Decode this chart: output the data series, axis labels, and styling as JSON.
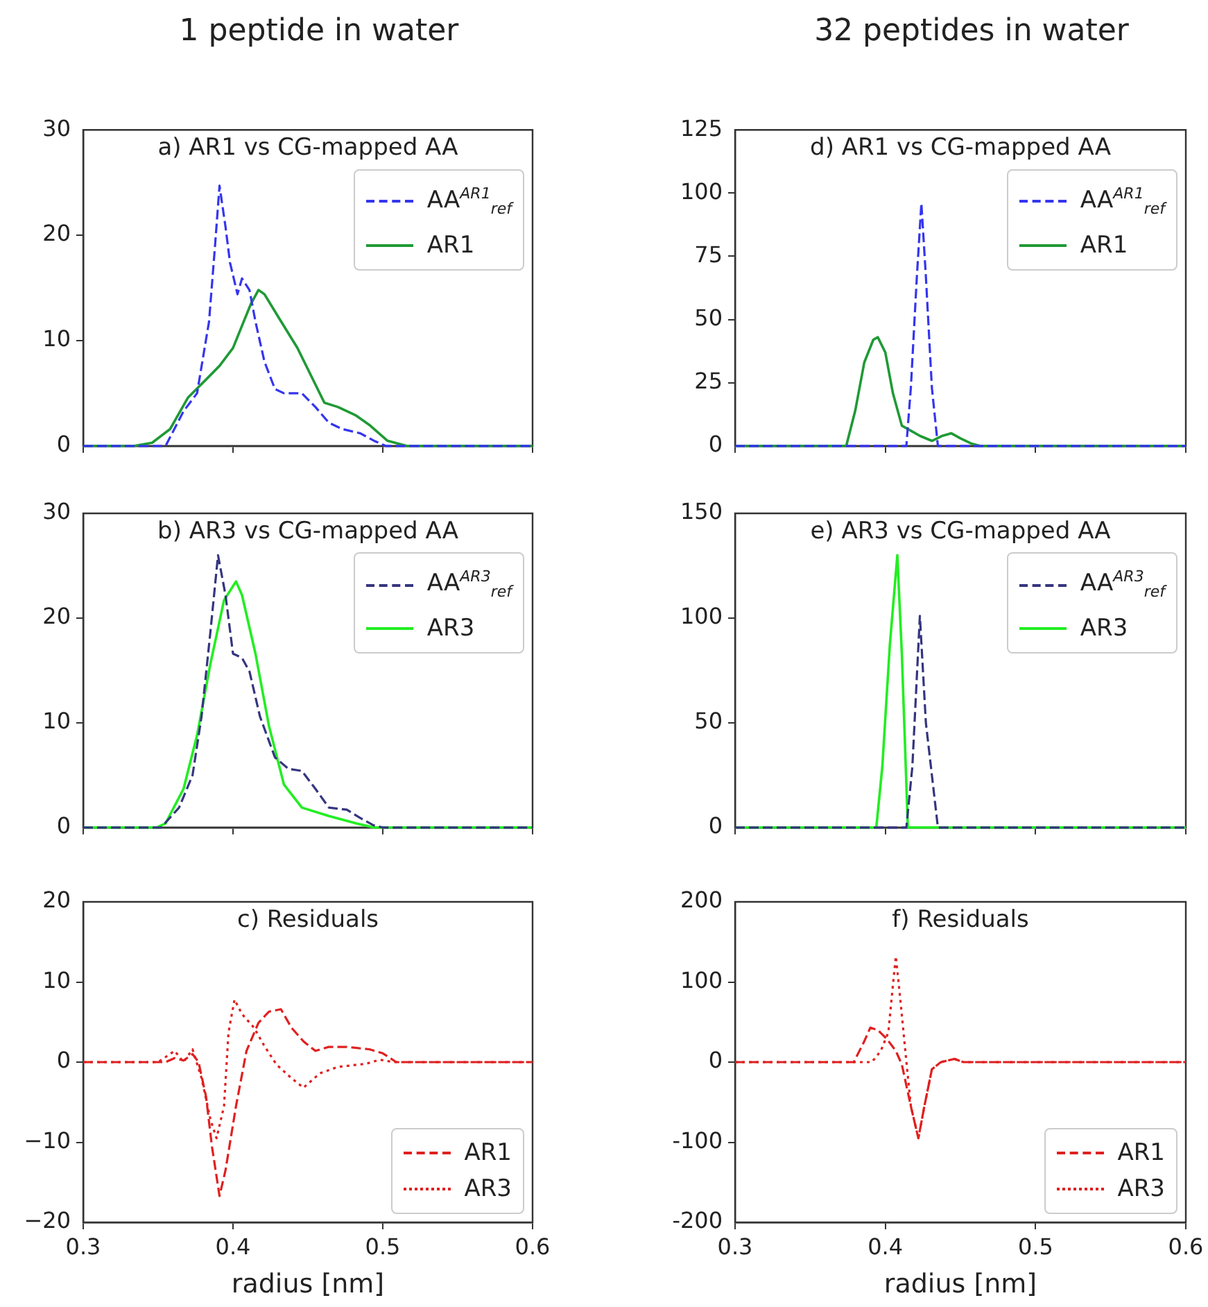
{
  "chart_data": [
    {
      "type": "line",
      "title": "a) AR1 vs CG-mapped AA",
      "annotations": [
        "1 peptide in water"
      ],
      "xlim": [
        0.3,
        0.6
      ],
      "xticks": [
        0.3,
        0.4,
        0.5,
        0.6
      ],
      "ylim": [
        0,
        30
      ],
      "yticks": [
        0,
        10,
        20,
        30
      ],
      "tick_labels": "y",
      "legend": "top right",
      "series": [
        {
          "name": "AA$^{AR1}$$_{ref}$",
          "color": "#3535f0",
          "line_style": "dashed",
          "x": [
            0.3,
            0.355,
            0.367,
            0.376,
            0.384,
            0.388,
            0.391,
            0.395,
            0.398,
            0.403,
            0.406,
            0.411,
            0.415,
            0.421,
            0.428,
            0.434,
            0.446,
            0.455,
            0.464,
            0.473,
            0.485,
            0.494,
            0.502,
            0.6
          ],
          "values": [
            0,
            0,
            3.3,
            5,
            11.8,
            19,
            24.7,
            20.8,
            17.4,
            14.4,
            15.9,
            14.8,
            11.8,
            8,
            5.4,
            5,
            5,
            3.7,
            2.2,
            1.6,
            1.2,
            0.5,
            0,
            0
          ]
        },
        {
          "name": "AR1",
          "color": "#1f9a35",
          "line_style": "solid",
          "x": [
            0.3,
            0.334,
            0.346,
            0.358,
            0.37,
            0.382,
            0.391,
            0.4,
            0.406,
            0.412,
            0.417,
            0.421,
            0.43,
            0.443,
            0.452,
            0.461,
            0.47,
            0.482,
            0.491,
            0.503,
            0.516,
            0.6
          ],
          "values": [
            0,
            0,
            0.3,
            1.6,
            4.6,
            6.3,
            7.6,
            9.3,
            11.4,
            13.5,
            14.8,
            14.4,
            12.3,
            9.3,
            6.7,
            4.1,
            3.7,
            2.9,
            2,
            0.5,
            0,
            0
          ]
        }
      ]
    },
    {
      "type": "line",
      "title": "b) AR3 vs CG-mapped AA",
      "xlim": [
        0.3,
        0.6
      ],
      "xticks": [
        0.3,
        0.4,
        0.5,
        0.6
      ],
      "ylim": [
        0,
        30
      ],
      "yticks": [
        0,
        10,
        20,
        30
      ],
      "tick_labels": "y",
      "legend": "top right",
      "series": [
        {
          "name": "AA$^{AR3}$$_{ref}$",
          "color": "#35357f",
          "line_style": "dashed",
          "x": [
            0.3,
            0.352,
            0.364,
            0.373,
            0.379,
            0.385,
            0.39,
            0.395,
            0.4,
            0.406,
            0.411,
            0.418,
            0.428,
            0.437,
            0.446,
            0.455,
            0.464,
            0.476,
            0.485,
            0.494,
            0.5,
            0.6
          ],
          "values": [
            0,
            0,
            1.9,
            5,
            10.6,
            18.8,
            26,
            22.2,
            16.6,
            16.2,
            14.9,
            10.6,
            6.7,
            5.6,
            5.4,
            3.7,
            1.9,
            1.7,
            0.9,
            0.2,
            0,
            0
          ]
        },
        {
          "name": "AR3",
          "color": "#22ee22",
          "line_style": "solid",
          "x": [
            0.3,
            0.349,
            0.355,
            0.367,
            0.376,
            0.385,
            0.394,
            0.402,
            0.406,
            0.415,
            0.424,
            0.434,
            0.446,
            0.464,
            0.482,
            0.494,
            0.6
          ],
          "values": [
            0,
            0,
            0.4,
            3.7,
            8.8,
            15.7,
            21.7,
            23.5,
            22.2,
            16.6,
            9.7,
            4.1,
            1.9,
            1.1,
            0.4,
            0,
            0
          ]
        }
      ]
    },
    {
      "type": "line",
      "title": "c) Residuals",
      "xlabel": "radius [nm]",
      "xlim": [
        0.3,
        0.6
      ],
      "xticks": [
        0.3,
        0.4,
        0.5,
        0.6
      ],
      "ylim": [
        -20,
        20
      ],
      "yticks": [
        {
          "value": -20,
          "label": "−20"
        },
        {
          "value": -10,
          "label": "−10"
        },
        0,
        10,
        20
      ],
      "legend": "bottom right",
      "series": [
        {
          "name": "AR1",
          "color": "#e02020",
          "line_style": "dashed",
          "x": [
            0.3,
            0.355,
            0.361,
            0.367,
            0.373,
            0.377,
            0.382,
            0.386,
            0.391,
            0.395,
            0.402,
            0.409,
            0.417,
            0.424,
            0.432,
            0.439,
            0.447,
            0.455,
            0.464,
            0.476,
            0.491,
            0.5,
            0.509,
            0.6
          ],
          "values": [
            0,
            0,
            0.5,
            0.2,
            1,
            0,
            -4.3,
            -10.6,
            -16.7,
            -13.5,
            -5.5,
            1.4,
            4.9,
            6.3,
            6.6,
            4.3,
            2.6,
            1.4,
            1.9,
            1.9,
            1.6,
            1.1,
            0,
            0
          ]
        },
        {
          "name": "AR3",
          "color": "#e02020",
          "line_style": "dotted",
          "x": [
            0.3,
            0.35,
            0.361,
            0.367,
            0.373,
            0.379,
            0.385,
            0.389,
            0.394,
            0.397,
            0.401,
            0.406,
            0.414,
            0.421,
            0.429,
            0.439,
            0.447,
            0.458,
            0.47,
            0.489,
            0.498,
            0.507,
            0.6
          ],
          "values": [
            0,
            0,
            1.4,
            0,
            1.6,
            -2,
            -7.2,
            -9.5,
            -5.5,
            3.7,
            7.8,
            6,
            4.3,
            2,
            -0.3,
            -2,
            -3.2,
            -1.4,
            -0.6,
            -0.2,
            0.3,
            0,
            0
          ]
        }
      ]
    },
    {
      "type": "line",
      "title": "d) AR1 vs CG-mapped AA",
      "annotations": [
        "32 peptides in water"
      ],
      "xlim": [
        0.3,
        0.6
      ],
      "xticks": [
        0.3,
        0.4,
        0.5,
        0.6
      ],
      "ylim": [
        0,
        125
      ],
      "yticks": [
        0,
        25,
        50,
        75,
        100,
        125
      ],
      "tick_labels": "y",
      "legend": "top right",
      "series": [
        {
          "name": "AA$^{AR1}$$_{ref}$",
          "color": "#3535f0",
          "line_style": "dashed",
          "x": [
            0.3,
            0.414,
            0.417,
            0.421,
            0.424,
            0.427,
            0.431,
            0.435,
            0.6
          ],
          "values": [
            0,
            0,
            23,
            67,
            96,
            67,
            23,
            0,
            0
          ]
        },
        {
          "name": "AR1",
          "color": "#1f9a35",
          "line_style": "solid",
          "x": [
            0.3,
            0.374,
            0.38,
            0.386,
            0.392,
            0.395,
            0.4,
            0.405,
            0.411,
            0.417,
            0.423,
            0.431,
            0.438,
            0.444,
            0.45,
            0.457,
            0.463,
            0.6
          ],
          "values": [
            0,
            0,
            14,
            33,
            42,
            43,
            37,
            21,
            8,
            6,
            4,
            2,
            4,
            5,
            3,
            1,
            0,
            0
          ]
        }
      ]
    },
    {
      "type": "line",
      "title": "e) AR3 vs CG-mapped AA",
      "xlim": [
        0.3,
        0.6
      ],
      "xticks": [
        0.3,
        0.4,
        0.5,
        0.6
      ],
      "ylim": [
        0,
        150
      ],
      "yticks": [
        0,
        50,
        100,
        150
      ],
      "tick_labels": "y",
      "legend": "top right",
      "series": [
        {
          "name": "AA$^{AR3}$$_{ref}$",
          "color": "#35357f",
          "line_style": "dashed",
          "x": [
            0.3,
            0.414,
            0.418,
            0.423,
            0.427,
            0.435,
            0.6
          ],
          "values": [
            0,
            0,
            29,
            101,
            50,
            0,
            0
          ]
        },
        {
          "name": "AR3",
          "color": "#22ee22",
          "line_style": "solid",
          "x": [
            0.3,
            0.394,
            0.398,
            0.403,
            0.408,
            0.411,
            0.415,
            0.6
          ],
          "values": [
            0,
            0,
            29,
            87,
            130,
            83,
            0,
            0
          ]
        }
      ]
    },
    {
      "type": "line",
      "title": "f) Residuals",
      "xlabel": "radius [nm]",
      "xlim": [
        0.3,
        0.6
      ],
      "xticks": [
        0.3,
        0.4,
        0.5,
        0.6
      ],
      "ylim": [
        -200,
        200
      ],
      "yticks": [
        -200,
        -100,
        0,
        100,
        200
      ],
      "legend": "bottom right",
      "series": [
        {
          "name": "AR1",
          "color": "#e02020",
          "line_style": "dashed",
          "x": [
            0.3,
            0.379,
            0.386,
            0.39,
            0.395,
            0.401,
            0.407,
            0.411,
            0.417,
            0.422,
            0.426,
            0.431,
            0.437,
            0.446,
            0.452,
            0.6
          ],
          "values": [
            0,
            0,
            26,
            43,
            40,
            29,
            14,
            -3,
            -55,
            -95,
            -55,
            -9,
            0,
            4,
            0,
            0
          ]
        },
        {
          "name": "AR3",
          "color": "#e02020",
          "line_style": "dotted",
          "x": [
            0.3,
            0.391,
            0.397,
            0.402,
            0.405,
            0.407,
            0.41,
            0.413,
            0.417,
            0.422,
            0.426,
            0.431,
            0.437,
            0.446,
            0.452,
            0.6
          ],
          "values": [
            0,
            0,
            14,
            37,
            95,
            132,
            78,
            20,
            -55,
            -95,
            -55,
            -9,
            0,
            4,
            0,
            0
          ]
        }
      ]
    }
  ]
}
